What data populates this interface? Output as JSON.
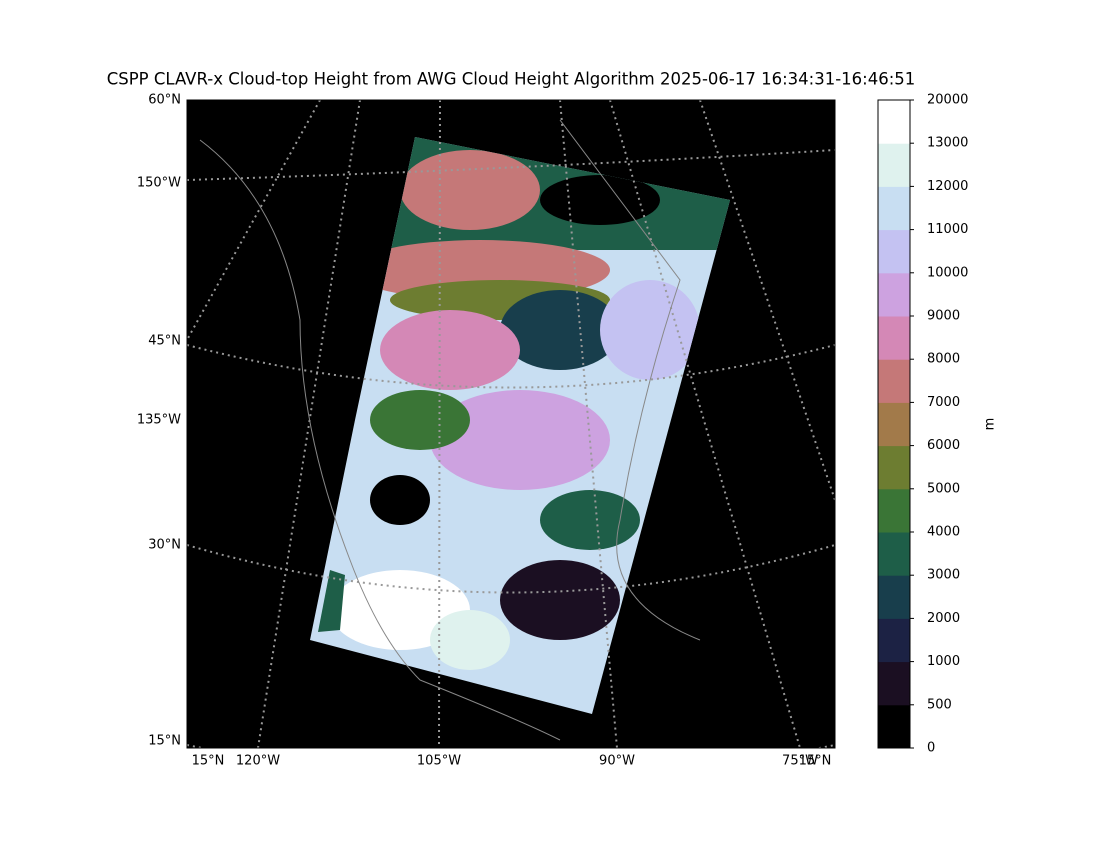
{
  "title": "CSPP CLAVR-x Cloud-top Height from AWG Cloud Height Algorithm 2025-06-17 16:34:31-16:46:51",
  "map": {
    "left_labels": [
      "60°N",
      "150°W",
      "45°N",
      "135°W",
      "30°N",
      "15°N"
    ],
    "bottom_labels": [
      "15°N",
      "120°W",
      "105°W",
      "90°W",
      "75°W",
      "15°N"
    ]
  },
  "colorbar": {
    "label": "m",
    "ticks": [
      0,
      500,
      1000,
      2000,
      3000,
      4000,
      5000,
      6000,
      7000,
      8000,
      9000,
      10000,
      11000,
      12000,
      13000,
      20000
    ],
    "colors": [
      "#000000",
      "#1b0f22",
      "#1c2244",
      "#183e4c",
      "#1e5e48",
      "#3a7536",
      "#6d7d31",
      "#a27a4a",
      "#c57878",
      "#d488b6",
      "#cda2e0",
      "#c4c2f2",
      "#c8def2",
      "#dff2ee",
      "#ffffff"
    ]
  }
}
